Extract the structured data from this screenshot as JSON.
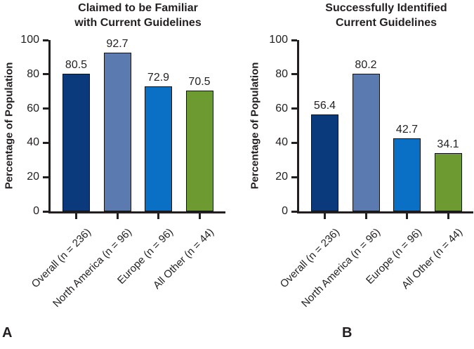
{
  "figure": {
    "panel_labels": [
      "A",
      "B"
    ],
    "background": "#ffffff",
    "axis_color": "#231f20",
    "text_color": "#231f20"
  },
  "chart_data": [
    {
      "type": "bar",
      "panel": "A",
      "title": "Claimed to be Familiar with Current Guidelines",
      "title_lines": [
        "Claimed to be Familiar",
        "with Current Guidelines"
      ],
      "ylabel": "Percentage of Population",
      "xlabel": "",
      "ylim": [
        0,
        100
      ],
      "yticks": [
        "0",
        "20",
        "40",
        "60",
        "80",
        "100"
      ],
      "grid": false,
      "legend": "none",
      "categories": [
        "Overall (n = 236)",
        "North America (n = 96)",
        "Europe (n = 96)",
        "All Other (n = 44)"
      ],
      "values": [
        80.5,
        92.7,
        72.9,
        70.5
      ],
      "value_labels": [
        "80.5",
        "92.7",
        "72.9",
        "70.5"
      ],
      "bar_colors": [
        "#0b3a7c",
        "#5b7ab0",
        "#0a70c6",
        "#6d9a31"
      ]
    },
    {
      "type": "bar",
      "panel": "B",
      "title": "Successfully Identified Current Guidelines",
      "title_lines": [
        "Successfully Identified",
        "Current Guidelines"
      ],
      "ylabel": "Percentage of Population",
      "xlabel": "",
      "ylim": [
        0,
        100
      ],
      "yticks": [
        "0",
        "20",
        "40",
        "60",
        "80",
        "100"
      ],
      "grid": false,
      "legend": "none",
      "categories": [
        "Overall (n = 236)",
        "North America (n = 96)",
        "Europe (n = 96)",
        "All Other (n = 44)"
      ],
      "values": [
        56.4,
        80.2,
        42.7,
        34.1
      ],
      "value_labels": [
        "56.4",
        "80.2",
        "42.7",
        "34.1"
      ],
      "bar_colors": [
        "#0b3a7c",
        "#5b7ab0",
        "#0a70c6",
        "#6d9a31"
      ]
    }
  ]
}
